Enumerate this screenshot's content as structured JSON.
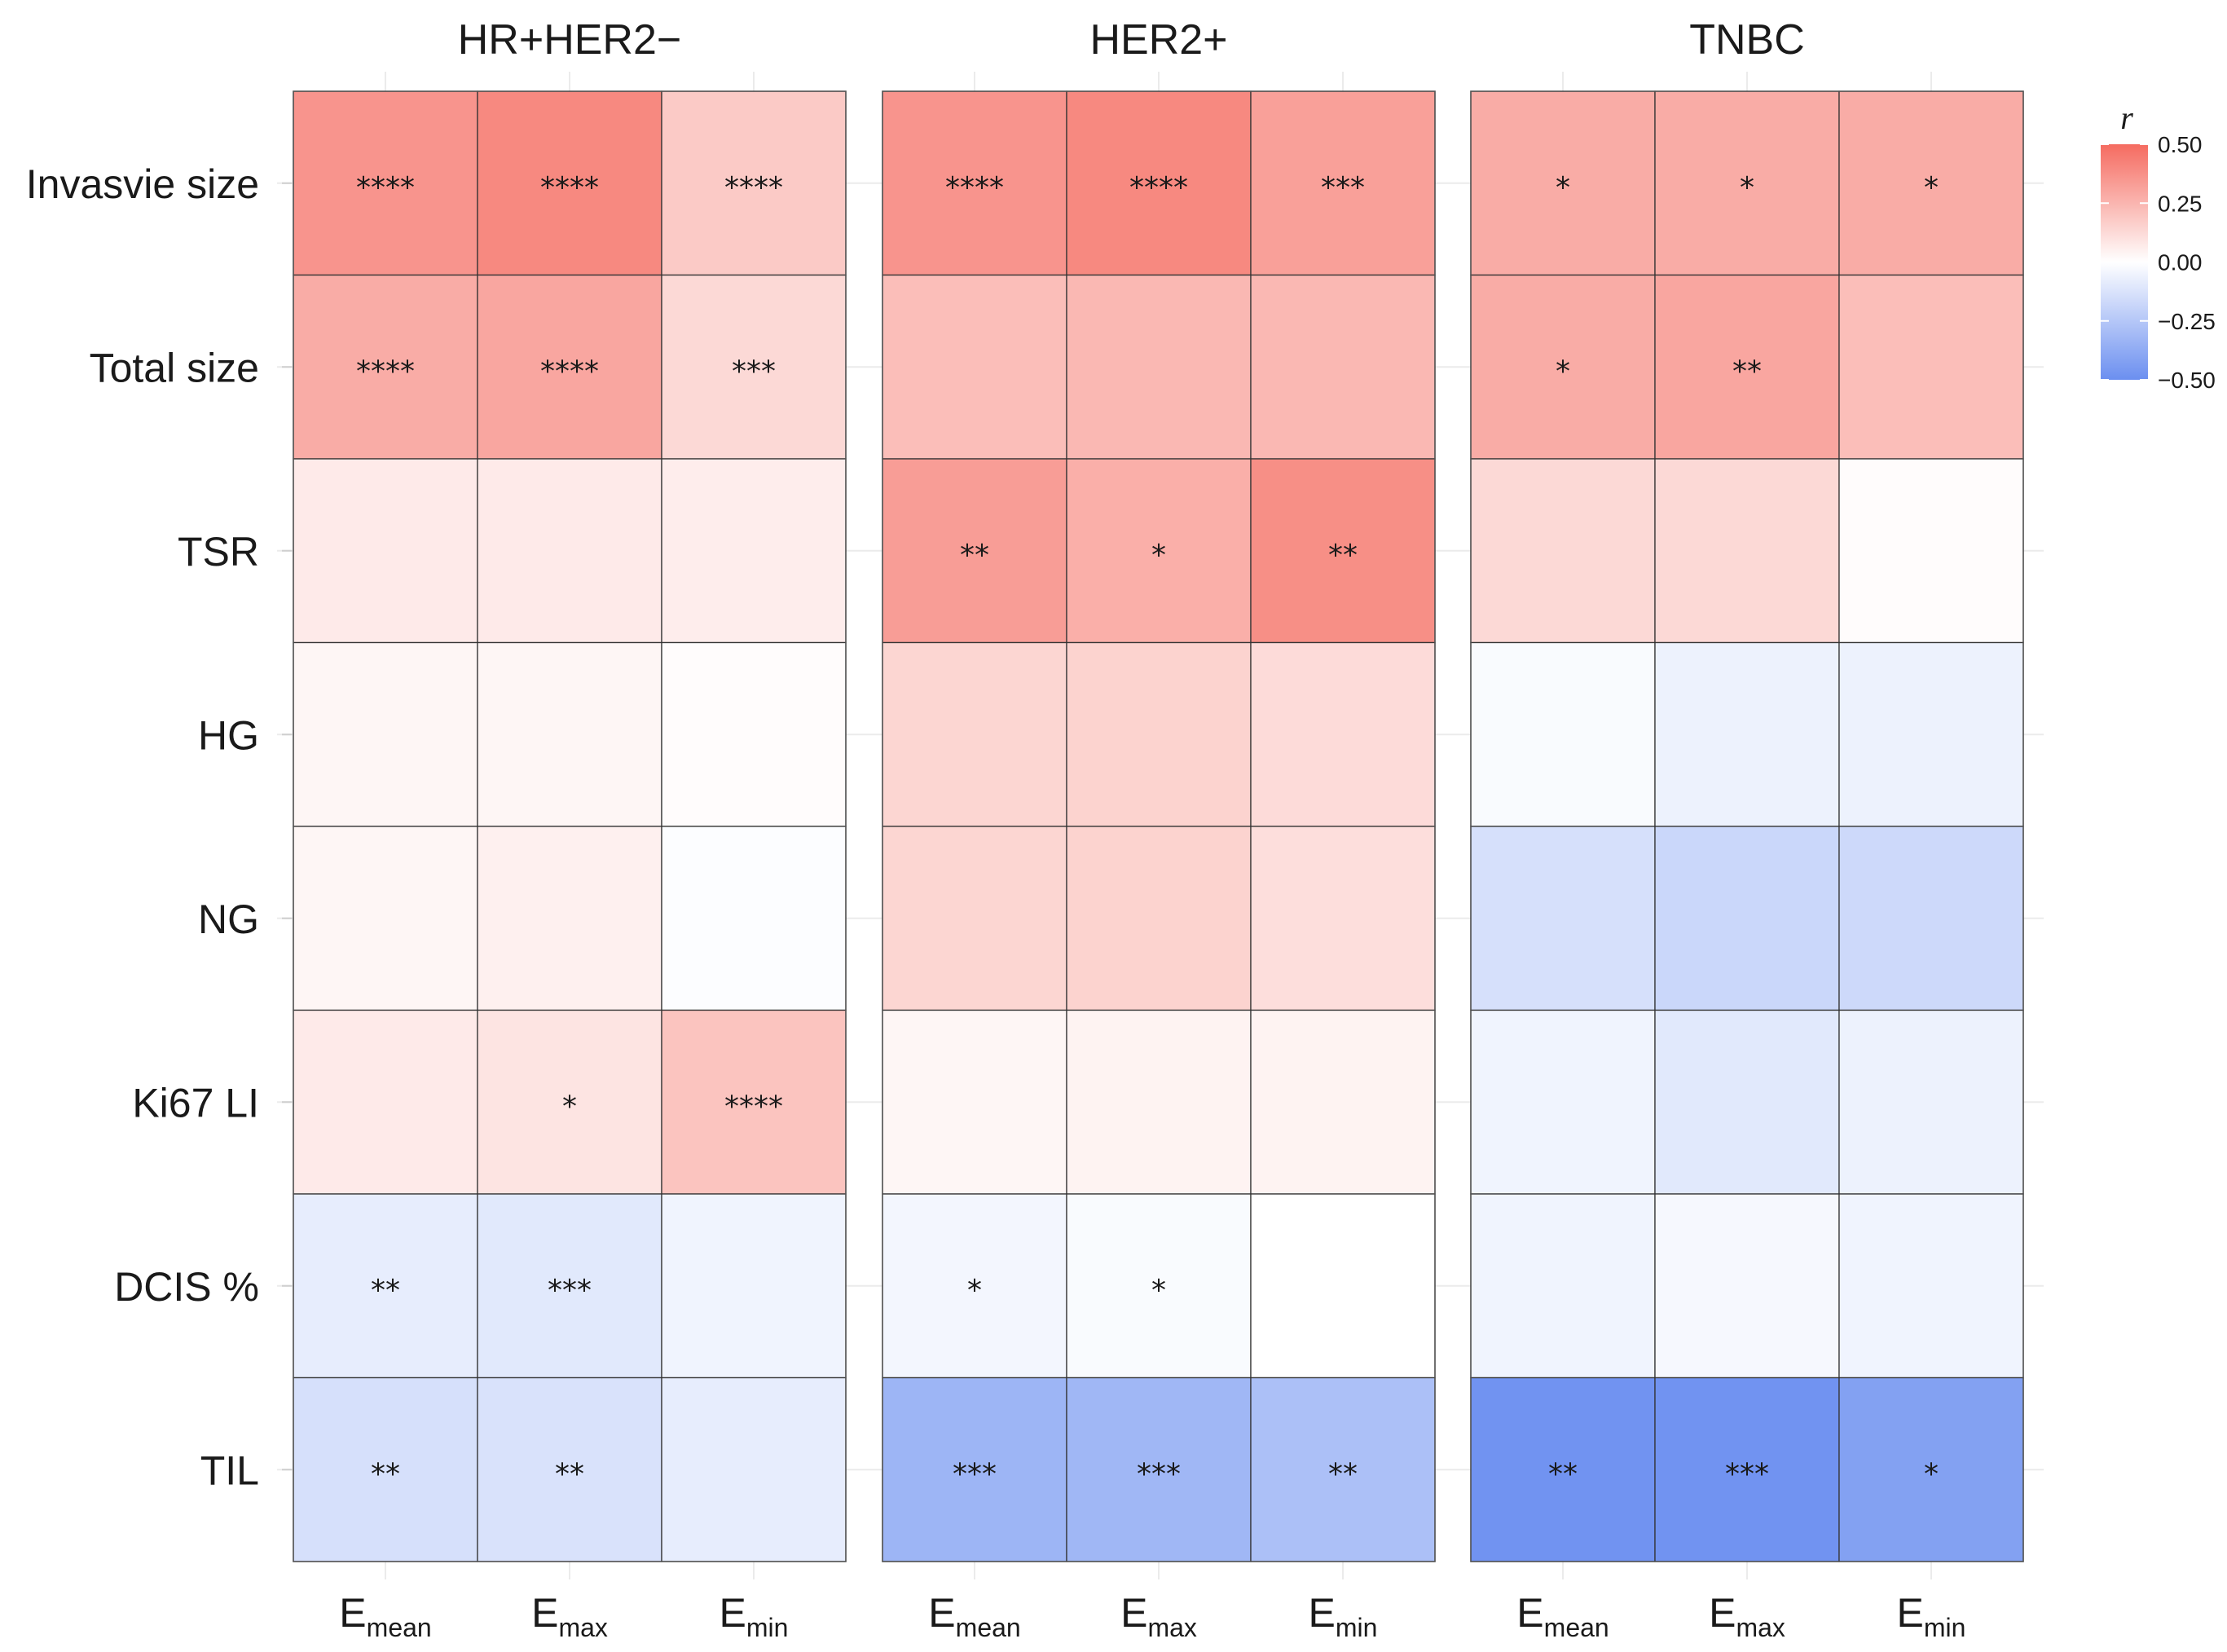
{
  "chart_data": {
    "type": "heatmap",
    "legend_title": "r",
    "color_scale": {
      "low": "#6b8ff0",
      "mid": "#ffffff",
      "high": "#f56b60",
      "range": [
        -0.5,
        0.5
      ]
    },
    "legend_ticks": [
      "0.50",
      "0.25",
      "0.00",
      "−0.25",
      "−0.50"
    ],
    "legend_tick_values": [
      0.5,
      0.25,
      0.0,
      -0.25,
      -0.5
    ],
    "rows": [
      "Invasvie size",
      "Total size",
      "TSR",
      "HG",
      "NG",
      "Ki67 LI",
      "DCIS %",
      "TIL"
    ],
    "columns": [
      {
        "main": "E",
        "sub": "mean"
      },
      {
        "main": "E",
        "sub": "max"
      },
      {
        "main": "E",
        "sub": "min"
      }
    ],
    "panels": [
      {
        "title": "HR+HER2−",
        "values": [
          [
            0.36,
            0.4,
            0.18
          ],
          [
            0.28,
            0.3,
            0.13
          ],
          [
            0.07,
            0.07,
            0.06
          ],
          [
            0.03,
            0.03,
            0.01
          ],
          [
            0.03,
            0.05,
            -0.01
          ],
          [
            0.07,
            0.09,
            0.2
          ],
          [
            -0.08,
            -0.1,
            -0.05
          ],
          [
            -0.14,
            -0.13,
            -0.08
          ]
        ],
        "stars": [
          [
            "****",
            "****",
            "****"
          ],
          [
            "****",
            "****",
            "***"
          ],
          [
            "",
            "",
            ""
          ],
          [
            "",
            "",
            ""
          ],
          [
            "",
            "",
            ""
          ],
          [
            "",
            "*",
            "****"
          ],
          [
            "**",
            "***",
            ""
          ],
          [
            "**",
            "**",
            ""
          ]
        ]
      },
      {
        "title": "HER2+",
        "values": [
          [
            0.36,
            0.4,
            0.32
          ],
          [
            0.22,
            0.24,
            0.24
          ],
          [
            0.33,
            0.27,
            0.38
          ],
          [
            0.14,
            0.15,
            0.12
          ],
          [
            0.14,
            0.15,
            0.11
          ],
          [
            0.03,
            0.04,
            0.04
          ],
          [
            -0.04,
            -0.02,
            0.0
          ],
          [
            -0.33,
            -0.32,
            -0.28
          ]
        ],
        "stars": [
          [
            "****",
            "****",
            "***"
          ],
          [
            "",
            "",
            ""
          ],
          [
            "**",
            "*",
            "**"
          ],
          [
            "",
            "",
            ""
          ],
          [
            "",
            "",
            ""
          ],
          [
            "",
            "",
            ""
          ],
          [
            "*",
            "*",
            ""
          ],
          [
            "***",
            "***",
            "**"
          ]
        ]
      },
      {
        "title": "TNBC",
        "values": [
          [
            0.28,
            0.28,
            0.28
          ],
          [
            0.28,
            0.3,
            0.22
          ],
          [
            0.13,
            0.13,
            0.01
          ],
          [
            -0.02,
            -0.06,
            -0.06
          ],
          [
            -0.14,
            -0.18,
            -0.17
          ],
          [
            -0.05,
            -0.1,
            -0.06
          ],
          [
            -0.05,
            -0.03,
            -0.05
          ],
          [
            -0.48,
            -0.48,
            -0.42
          ]
        ],
        "stars": [
          [
            "*",
            "*",
            "*"
          ],
          [
            "*",
            "**",
            ""
          ],
          [
            "",
            "",
            ""
          ],
          [
            "",
            "",
            ""
          ],
          [
            "",
            "",
            ""
          ],
          [
            "",
            "",
            ""
          ],
          [
            "",
            "",
            ""
          ],
          [
            "**",
            "***",
            "*"
          ]
        ]
      }
    ]
  }
}
